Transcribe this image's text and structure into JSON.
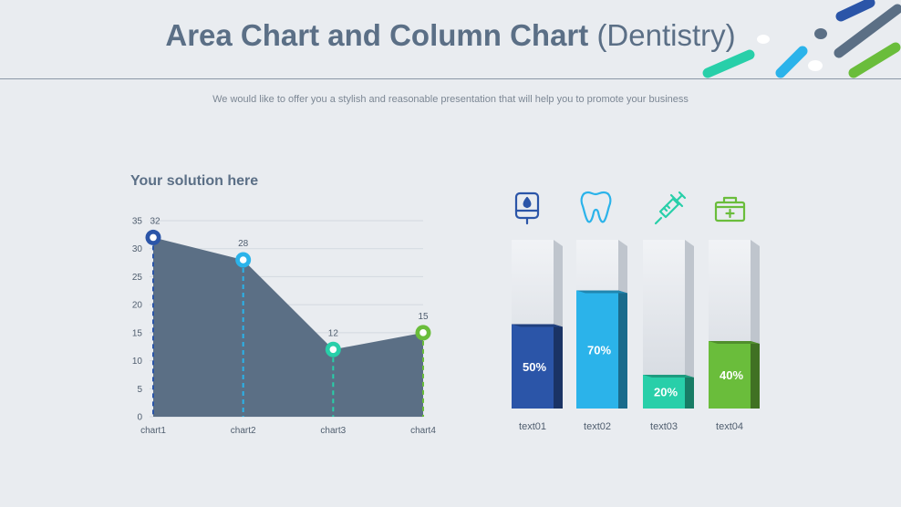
{
  "header": {
    "title_bold": "Area Chart and Column Chart",
    "title_light": "(Dentistry)",
    "subtitle": "We would like to offer you a stylish and reasonable presentation that will help you to promote your business"
  },
  "area_section": {
    "heading": "Your solution here"
  },
  "colors": {
    "area_fill": "#5b6f85",
    "blue_dark": "#2b55a8",
    "blue_light": "#2bb3ea",
    "teal": "#28cfa9",
    "green": "#6abd3b"
  },
  "chart_data": [
    {
      "type": "area",
      "title": "Your solution here",
      "categories": [
        "chart1",
        "chart2",
        "chart3",
        "chart4"
      ],
      "values": [
        32,
        28,
        12,
        15
      ],
      "ylim": [
        0,
        35
      ],
      "yticks": [
        0,
        5,
        10,
        15,
        20,
        25,
        30,
        35
      ],
      "grid": true,
      "marker_colors": [
        "#2b55a8",
        "#2bb3ea",
        "#28cfa9",
        "#6abd3b"
      ]
    },
    {
      "type": "bar",
      "categories": [
        "text01",
        "text02",
        "text03",
        "text04"
      ],
      "values": [
        50,
        70,
        20,
        40
      ],
      "value_labels": [
        "50%",
        "70%",
        "20%",
        "40%"
      ],
      "ylim": [
        0,
        100
      ],
      "icons": [
        "iv-bag-icon",
        "tooth-icon",
        "syringe-icon",
        "first-aid-kit-icon"
      ],
      "colors": [
        "#2b55a8",
        "#2bb3ea",
        "#28cfa9",
        "#6abd3b"
      ]
    }
  ]
}
